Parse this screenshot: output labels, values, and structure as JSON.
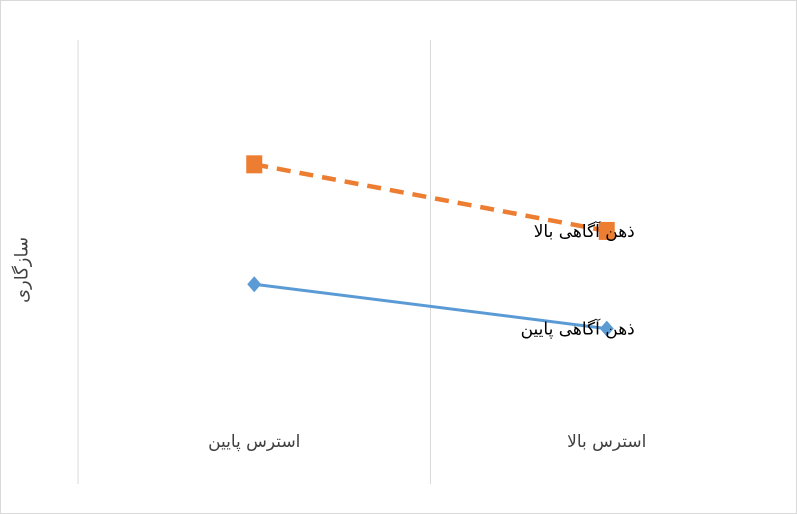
{
  "chart_data": {
    "type": "line",
    "title": "",
    "xlabel": "",
    "ylabel": "سازگاری",
    "categories": [
      "استرس پایین",
      "استرس بالا"
    ],
    "series": [
      {
        "name": "ذهن آگاهی بالا",
        "values": [
          72,
          57
        ],
        "color": "#ED7D31",
        "style": "dashed",
        "marker": "square"
      },
      {
        "name": "ذهن آگاهی پایین",
        "values": [
          45,
          35
        ],
        "color": "#5B9BD5",
        "style": "solid",
        "marker": "diamond"
      }
    ],
    "ylim": [
      0,
      100
    ],
    "grid": "vertical",
    "legend": "end-of-line labels"
  }
}
